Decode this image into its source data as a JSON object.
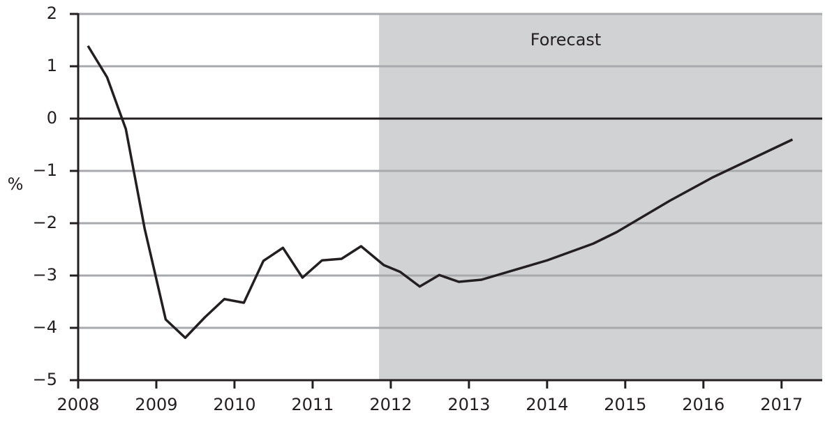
{
  "chart_data": {
    "type": "line",
    "y_label": "%",
    "x": [
      2008.125,
      2008.37,
      2008.61,
      2008.85,
      2009.12,
      2009.37,
      2009.62,
      2009.87,
      2010.12,
      2010.37,
      2010.62,
      2010.87,
      2011.12,
      2011.37,
      2011.62,
      2011.91,
      2012.12,
      2012.37,
      2012.62,
      2012.87,
      2013.16,
      2014.0,
      2014.59,
      2014.89,
      2015.57,
      2016.11,
      2017.14
    ],
    "values": [
      1.39,
      0.79,
      -0.2,
      -2.1,
      -3.84,
      -4.19,
      -3.8,
      -3.45,
      -3.52,
      -2.72,
      -2.47,
      -3.04,
      -2.71,
      -2.68,
      -2.44,
      -2.8,
      -2.93,
      -3.21,
      -2.99,
      -3.12,
      -3.08,
      -2.71,
      -2.39,
      -2.17,
      -1.57,
      -1.13,
      -0.4
    ],
    "color": "#231f20",
    "xlim": [
      2008,
      2017.52
    ],
    "xticks": [
      2008,
      2009,
      2010,
      2011,
      2012,
      2013,
      2014,
      2015,
      2016,
      2017
    ],
    "ylim": [
      -5,
      2
    ],
    "yticks": [
      {
        "value": -5,
        "label": "−5"
      },
      {
        "value": -4,
        "label": "−4"
      },
      {
        "value": -3,
        "label": "−3"
      },
      {
        "value": -2,
        "label": "−2"
      },
      {
        "value": -1,
        "label": "−1"
      },
      0,
      1,
      2
    ],
    "grid": true,
    "shaded_region": {
      "start": 2011.85,
      "label": "Forecast",
      "color": "#d1d2d4"
    }
  }
}
